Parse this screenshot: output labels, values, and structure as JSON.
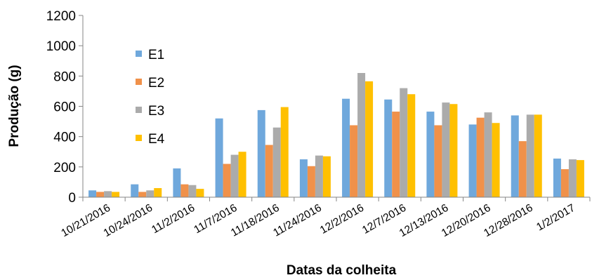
{
  "chart_data": {
    "type": "bar",
    "title": "",
    "xlabel": "Datas da colheita",
    "ylabel": "Produção (g)",
    "ylim": [
      0,
      1200
    ],
    "yticks": [
      0,
      200,
      400,
      600,
      800,
      1000,
      1200
    ],
    "grid": false,
    "legend_position": "left-inside",
    "categories": [
      "10/21/2016",
      "10/24/2016",
      "11/2/2016",
      "11/7/2016",
      "11/18/2016",
      "11/24/2016",
      "12/2/2016",
      "12/7/2016",
      "12/13/2016",
      "12/20/2016",
      "12/28/2016",
      "1/2/2017"
    ],
    "series": [
      {
        "name": "E1",
        "color": "#6FA8DC",
        "values": [
          45,
          85,
          190,
          520,
          575,
          250,
          650,
          645,
          565,
          480,
          540,
          255
        ]
      },
      {
        "name": "E2",
        "color": "#F0914A",
        "values": [
          35,
          35,
          85,
          220,
          345,
          205,
          475,
          565,
          475,
          525,
          370,
          185
        ]
      },
      {
        "name": "E3",
        "color": "#ABABAB",
        "values": [
          40,
          45,
          80,
          280,
          460,
          275,
          820,
          720,
          625,
          560,
          545,
          250
        ]
      },
      {
        "name": "E4",
        "color": "#FFC000",
        "values": [
          35,
          60,
          55,
          300,
          595,
          270,
          765,
          680,
          615,
          490,
          545,
          245
        ]
      }
    ]
  }
}
